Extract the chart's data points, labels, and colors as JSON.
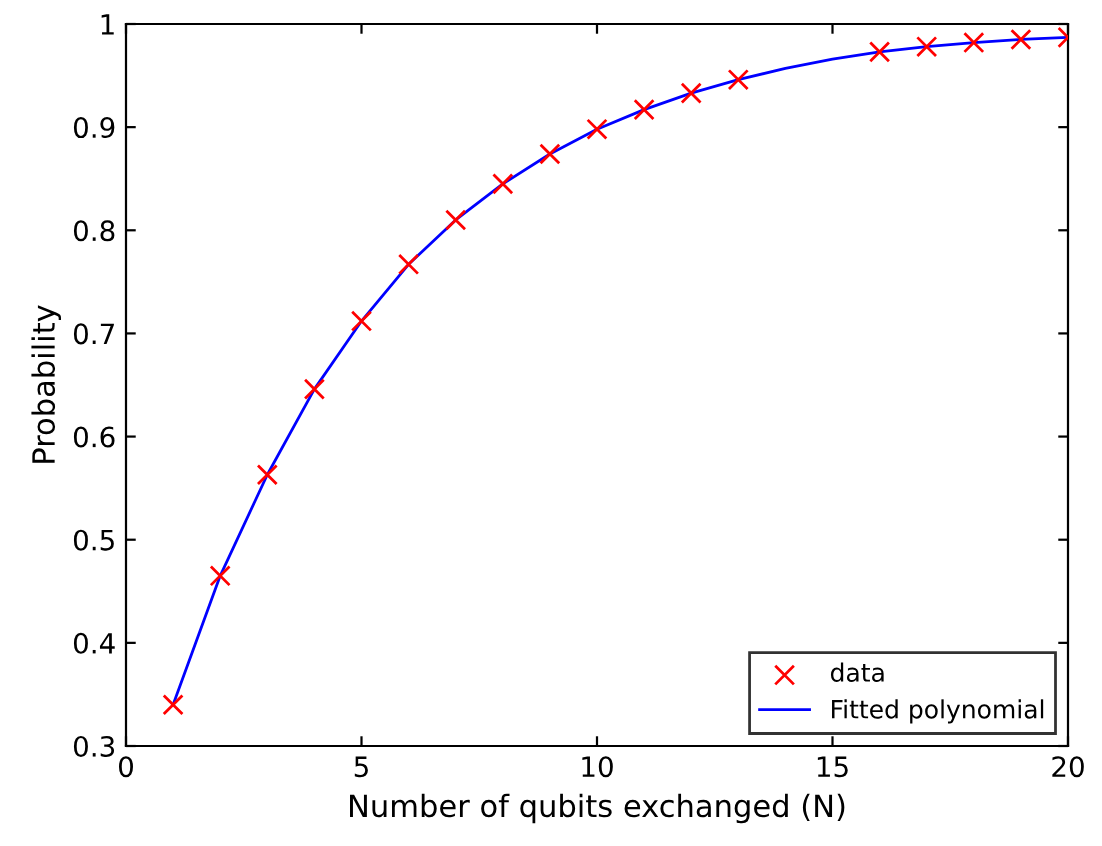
{
  "chart_data": {
    "type": "scatter",
    "xlabel": "Number of qubits exchanged (N)",
    "ylabel": "Probability",
    "x": [
      1,
      2,
      3,
      4,
      5,
      6,
      7,
      8,
      9,
      10,
      11,
      12,
      13,
      14,
      15,
      16,
      17,
      18,
      19,
      20
    ],
    "series": [
      {
        "name": "data",
        "marker": "cross",
        "color": "#ff0000",
        "values": [
          0.34,
          0.465,
          0.563,
          0.646,
          0.712,
          0.767,
          0.81,
          0.845,
          0.874,
          0.898,
          0.917,
          0.933,
          0.946,
          null,
          null,
          0.973,
          0.978,
          0.982,
          0.985,
          0.987
        ]
      },
      {
        "name": "Fitted polynomial",
        "type": "line",
        "line_style": "solid",
        "color": "#0000ff",
        "values": [
          0.34,
          0.465,
          0.563,
          0.646,
          0.712,
          0.767,
          0.81,
          0.845,
          0.874,
          0.898,
          0.917,
          0.933,
          0.946,
          0.957,
          0.966,
          0.973,
          0.978,
          0.982,
          0.985,
          0.987
        ]
      }
    ],
    "xlim": [
      0,
      20
    ],
    "xticks": [
      0,
      5,
      10,
      15,
      20
    ],
    "ylim": [
      0.3,
      1
    ],
    "yticks": [
      0.3,
      0.4,
      0.5,
      0.6,
      0.7,
      0.8,
      0.9,
      1
    ],
    "grid": false,
    "legend": "bottom right"
  }
}
